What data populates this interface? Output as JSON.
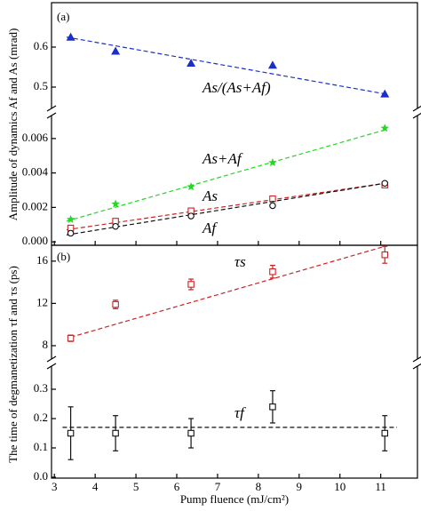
{
  "chart_data": [
    {
      "type": "scatter",
      "panel_label": "(a)",
      "ylabel": "Amplitude of dynamics Af and As (mrad)",
      "segments": [
        {
          "ylim": [
            0.46,
            0.7
          ],
          "yticks": [
            0.5,
            0.6
          ],
          "series": [
            {
              "name": "As/(As+Af)",
              "color": "#1a2fc8",
              "marker": "triangle",
              "x": [
                3.4,
                4.5,
                6.35,
                8.35,
                11.1
              ],
              "values": [
                0.625,
                0.59,
                0.56,
                0.555,
                0.483
              ],
              "fit_x": [
                3.3,
                11.1
              ],
              "fit": [
                0.625,
                0.483
              ]
            }
          ]
        },
        {
          "ylim": [
            -0.0002,
            0.007
          ],
          "yticks": [
            {
              "value": 0,
              "label": "0.000"
            },
            {
              "value": 0.002,
              "label": "0.002"
            },
            {
              "value": 0.004,
              "label": "0.004"
            },
            {
              "value": 0.006,
              "label": "0.006"
            }
          ],
          "series": [
            {
              "name": "As+Af",
              "color": "#22d822",
              "marker": "star",
              "x": [
                3.4,
                4.5,
                6.35,
                8.35,
                11.1
              ],
              "values": [
                0.0013,
                0.0022,
                0.0032,
                0.0046,
                0.0066
              ],
              "fit_x": [
                3.3,
                11.1
              ],
              "fit": [
                0.0012,
                0.0065
              ]
            },
            {
              "name": "As",
              "color": "#cc2222",
              "marker": "square",
              "x": [
                3.4,
                4.5,
                6.35,
                8.35,
                11.1
              ],
              "values": [
                0.0008,
                0.0012,
                0.0018,
                0.0025,
                0.0033
              ],
              "fit_x": [
                3.3,
                11.1
              ],
              "fit": [
                0.0007,
                0.0034
              ]
            },
            {
              "name": "Af",
              "color": "#111111",
              "marker": "circle",
              "x": [
                3.4,
                4.5,
                6.35,
                8.35,
                11.1
              ],
              "values": [
                0.0005,
                0.0009,
                0.0015,
                0.0021,
                0.0034
              ],
              "fit_x": [
                3.3,
                11.1
              ],
              "fit": [
                0.0004,
                0.0034
              ]
            }
          ]
        }
      ]
    },
    {
      "type": "scatter",
      "panel_label": "(b)",
      "ylabel": "The time of degmanetization τf and τs (ps)",
      "xlabel": "Pump fluence (mJ/cm²)",
      "xlim": [
        2.93,
        11.9
      ],
      "xticks": [
        3,
        4,
        5,
        6,
        7,
        8,
        9,
        10,
        11
      ],
      "segments": [
        {
          "ylim": [
            7.2,
            17.5
          ],
          "yticks": [
            8,
            12,
            16
          ],
          "series": [
            {
              "name": "τs",
              "color": "#cc2222",
              "marker": "square",
              "x": [
                3.4,
                4.5,
                6.35,
                8.35,
                11.1
              ],
              "values": [
                8.7,
                11.9,
                13.8,
                15.0,
                16.6
              ],
              "errors": [
                0.3,
                0.4,
                0.5,
                0.6,
                0.8
              ],
              "fit_x": [
                3.4,
                11.1
              ],
              "fit": [
                8.8,
                17.4
              ]
            }
          ]
        },
        {
          "ylim": [
            0,
            0.35
          ],
          "yticks": [
            {
              "value": 0,
              "label": "0.0"
            },
            0.1,
            0.2,
            0.3
          ],
          "series": [
            {
              "name": "τf",
              "color": "#111111",
              "marker": "square",
              "x": [
                3.4,
                4.5,
                6.35,
                8.35,
                11.1
              ],
              "values": [
                0.15,
                0.15,
                0.15,
                0.24,
                0.15
              ],
              "errors": [
                0.09,
                0.06,
                0.05,
                0.055,
                0.06
              ],
              "fit_x": [
                3.2,
                11.4
              ],
              "fit": [
                0.17,
                0.17
              ]
            }
          ]
        }
      ]
    }
  ]
}
